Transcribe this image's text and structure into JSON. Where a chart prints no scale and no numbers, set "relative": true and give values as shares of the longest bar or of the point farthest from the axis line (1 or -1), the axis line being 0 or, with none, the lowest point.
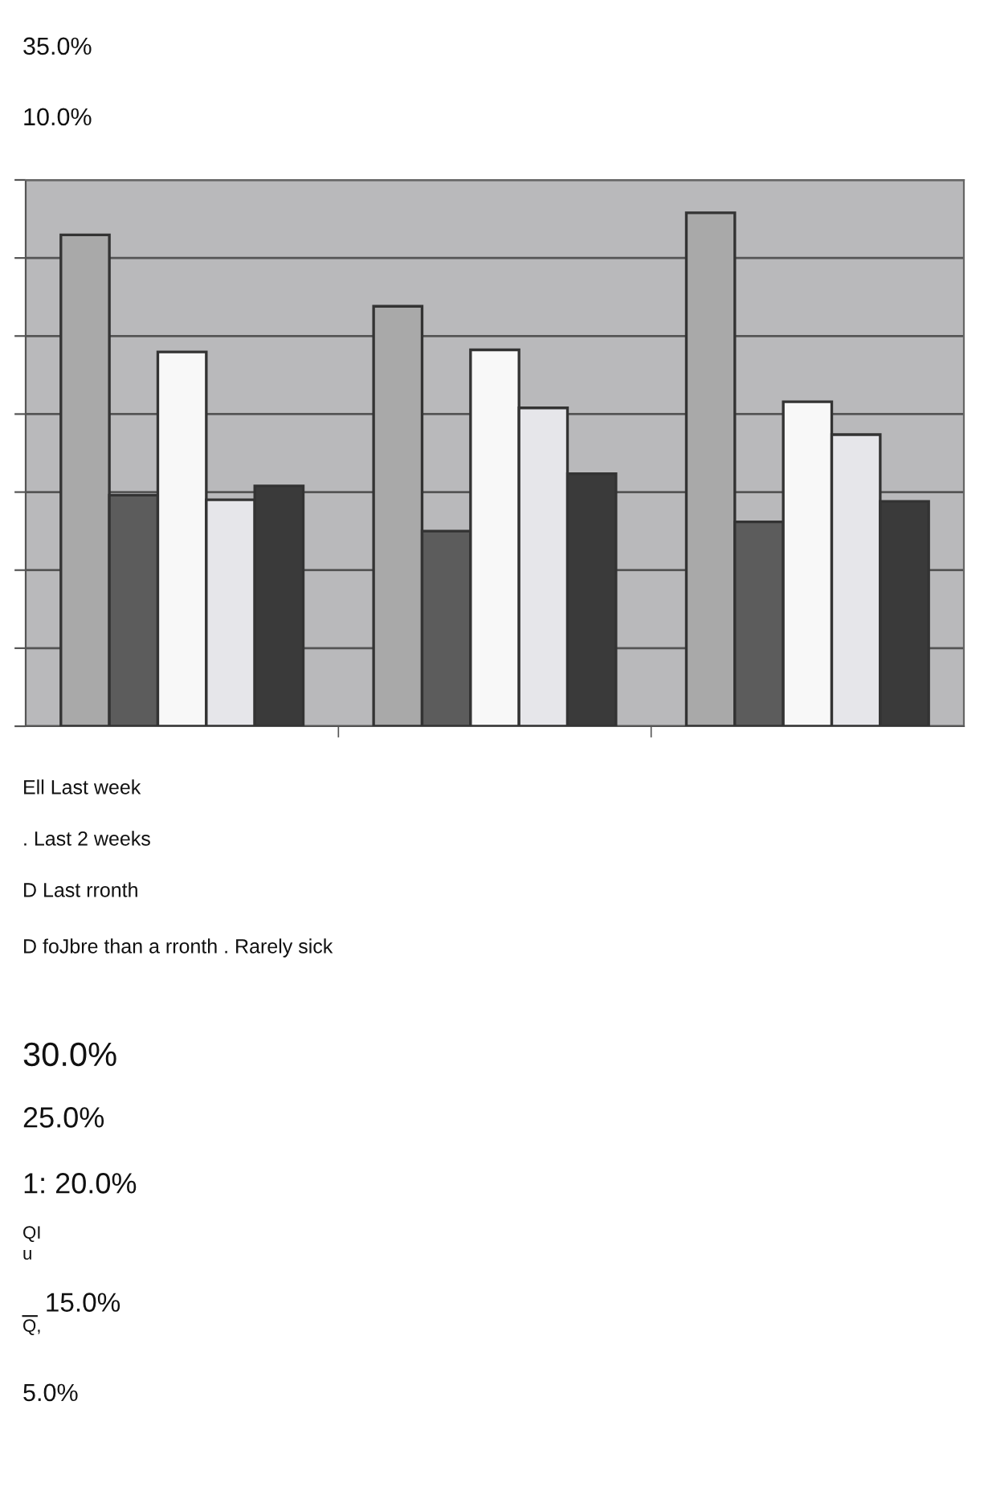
{
  "chart_data": {
    "type": "bar",
    "categories": [
      null,
      null,
      null
    ],
    "series": [
      {
        "color": "#a9a9a9",
        "values": [
          0.957,
          0.818,
          1.0
        ]
      },
      {
        "color": "#5c5c5c",
        "values": [
          0.45,
          0.38,
          0.398
        ]
      },
      {
        "color": "#f8f8f8",
        "values": [
          0.729,
          0.733,
          0.632
        ]
      },
      {
        "color": "#e6e6ea",
        "values": [
          0.441,
          0.62,
          0.568
        ]
      },
      {
        "color": "#3a3a3a",
        "values": [
          0.468,
          0.492,
          0.438
        ]
      }
    ],
    "relative": true,
    "grid": "y",
    "legend": false,
    "annotations": [
      "35.0%",
      "10.0%",
      "Ell Last week",
      ". Last 2 weeks",
      "D Last rronth",
      "D foJbre than a rronth . Rarely sick",
      "30.0%",
      "25.0%",
      "1: 20.0%",
      "QI",
      "u",
      "_ 15.0%",
      "Q,",
      "5.0%"
    ]
  }
}
